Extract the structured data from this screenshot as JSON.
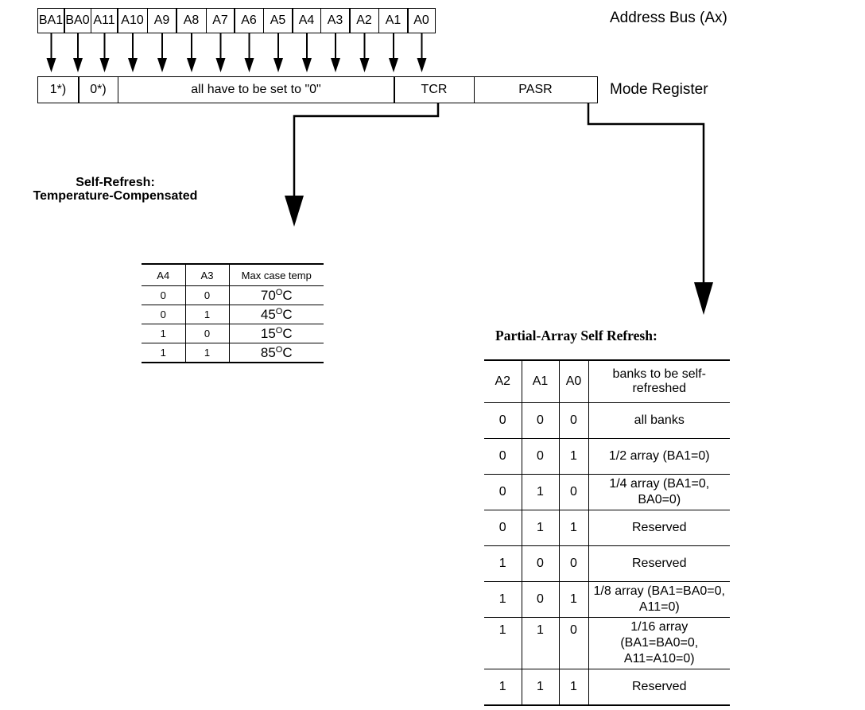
{
  "address_bus": {
    "cells": [
      "BA1",
      "BA0",
      "A11",
      "A10",
      "A9",
      "A8",
      "A7",
      "A6",
      "A5",
      "A4",
      "A3",
      "A2",
      "A1",
      "A0"
    ],
    "label": "Address Bus (Ax)"
  },
  "mode_register": {
    "fields": [
      "1*)",
      "0*)",
      "all have to be set to \"0\"",
      "TCR",
      "PASR"
    ],
    "label": "Mode Register"
  },
  "tcr": {
    "heading_line1": "Self-Refresh:",
    "heading_line2": "Temperature-Compensated",
    "headers": [
      "A4",
      "A3",
      "Max case temp"
    ],
    "rows": [
      {
        "a4": "0",
        "a3": "0",
        "temp": "70",
        "unit": "C"
      },
      {
        "a4": "0",
        "a3": "1",
        "temp": "45",
        "unit": "C"
      },
      {
        "a4": "1",
        "a3": "0",
        "temp": "15",
        "unit": "C"
      },
      {
        "a4": "1",
        "a3": "1",
        "temp": "85",
        "unit": "C"
      }
    ],
    "degree_symbol": "O"
  },
  "pasr": {
    "heading": "Partial-Array Self Refresh:",
    "headers": [
      "A2",
      "A1",
      "A0",
      "banks to be self-refreshed"
    ],
    "rows": [
      {
        "a2": "0",
        "a1": "0",
        "a0": "0",
        "banks": "all banks"
      },
      {
        "a2": "0",
        "a1": "0",
        "a0": "1",
        "banks": "1/2 array (BA1=0)"
      },
      {
        "a2": "0",
        "a1": "1",
        "a0": "0",
        "banks": "1/4 array (BA1=0, BA0=0)"
      },
      {
        "a2": "0",
        "a1": "1",
        "a0": "1",
        "banks": "Reserved"
      },
      {
        "a2": "1",
        "a1": "0",
        "a0": "0",
        "banks": "Reserved"
      },
      {
        "a2": "1",
        "a1": "0",
        "a0": "1",
        "banks": "1/8 array (BA1=BA0=0, A11=0)"
      },
      {
        "a2": "1",
        "a1": "1",
        "a0": "0",
        "banks": "1/16 array (BA1=BA0=0, A11=A10=0)"
      },
      {
        "a2": "1",
        "a1": "1",
        "a0": "1",
        "banks": "Reserved"
      }
    ]
  }
}
